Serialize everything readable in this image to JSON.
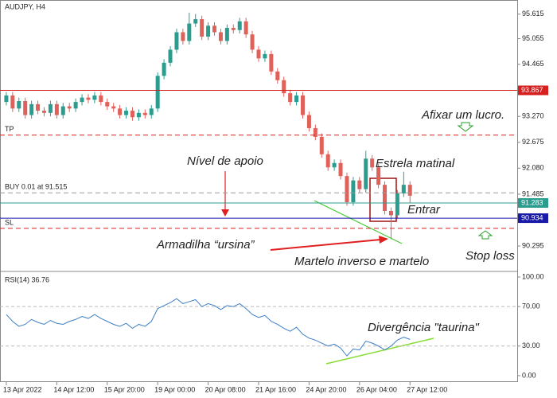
{
  "chart_data": [
    {
      "type": "candlestick",
      "title": "AUDJPY, H4",
      "open": [
        93.6,
        93.75,
        93.45,
        93.62,
        93.3,
        93.55,
        93.4,
        93.35,
        93.55,
        93.3,
        93.5,
        93.45,
        93.6,
        93.7,
        93.65,
        93.75,
        93.6,
        93.5,
        93.45,
        93.3,
        93.4,
        93.25,
        93.35,
        93.3,
        93.45,
        94.2,
        94.5,
        94.8,
        95.2,
        95.0,
        95.4,
        95.5,
        95.1,
        95.35,
        95.2,
        95.0,
        95.3,
        95.25,
        95.45,
        95.15,
        94.8,
        94.6,
        94.7,
        94.3,
        94.1,
        93.8,
        93.6,
        93.75,
        93.3,
        93.0,
        92.8,
        92.4,
        92.1,
        92.2,
        91.9,
        91.3,
        91.8,
        91.6,
        92.3,
        92.1,
        91.7,
        91.1,
        91.0,
        91.5,
        91.7
      ],
      "high": [
        93.83,
        93.83,
        93.7,
        93.7,
        93.63,
        93.63,
        93.48,
        93.63,
        93.63,
        93.58,
        93.58,
        93.68,
        93.78,
        93.78,
        93.83,
        93.83,
        93.68,
        93.58,
        93.53,
        93.48,
        93.48,
        93.43,
        93.43,
        93.53,
        94.28,
        94.58,
        94.88,
        95.28,
        95.28,
        95.65,
        95.62,
        95.58,
        95.43,
        95.43,
        95.28,
        95.38,
        95.38,
        95.53,
        95.53,
        95.23,
        94.88,
        94.78,
        94.78,
        94.38,
        94.18,
        93.88,
        93.83,
        93.83,
        93.38,
        93.08,
        92.88,
        92.48,
        92.28,
        92.28,
        91.98,
        91.88,
        91.88,
        92.48,
        92.38,
        92.18,
        91.78,
        91.18,
        91.58,
        92.0,
        91.78
      ],
      "low": [
        93.52,
        93.37,
        93.37,
        93.22,
        93.22,
        93.32,
        93.27,
        93.27,
        93.22,
        93.22,
        93.37,
        93.37,
        93.52,
        93.57,
        93.57,
        93.52,
        93.42,
        93.37,
        93.22,
        93.22,
        93.17,
        93.17,
        93.22,
        93.22,
        93.37,
        94.12,
        94.42,
        94.72,
        94.92,
        94.92,
        95.32,
        95.02,
        95.02,
        95.12,
        94.92,
        94.92,
        95.17,
        95.17,
        95.07,
        94.72,
        94.52,
        94.52,
        94.22,
        94.02,
        93.72,
        93.52,
        93.52,
        93.22,
        92.92,
        92.72,
        92.32,
        92.02,
        92.02,
        91.82,
        91.22,
        91.22,
        91.52,
        91.52,
        92.02,
        91.62,
        91.02,
        90.45,
        90.92,
        91.42,
        91.28
      ],
      "close": [
        93.75,
        93.45,
        93.62,
        93.3,
        93.55,
        93.4,
        93.35,
        93.55,
        93.3,
        93.5,
        93.45,
        93.6,
        93.7,
        93.65,
        93.75,
        93.6,
        93.5,
        93.45,
        93.3,
        93.4,
        93.25,
        93.35,
        93.3,
        93.45,
        94.2,
        94.5,
        94.8,
        95.2,
        95.0,
        95.4,
        95.5,
        95.1,
        95.35,
        95.2,
        95.0,
        95.3,
        95.25,
        95.45,
        95.15,
        94.8,
        94.6,
        94.7,
        94.3,
        94.1,
        93.8,
        93.6,
        93.75,
        93.3,
        93.0,
        92.8,
        92.4,
        92.1,
        92.2,
        91.9,
        91.3,
        91.8,
        91.6,
        92.3,
        92.1,
        91.7,
        91.1,
        91.0,
        91.5,
        91.7,
        91.45
      ],
      "up_color": "#2a9d8f",
      "down_color": "#e0605a",
      "ylim": [
        89.73,
        95.94
      ],
      "yticks": [
        {
          "value": 95.615,
          "label": "95.615"
        },
        {
          "value": 95.055,
          "label": "95.055"
        },
        {
          "value": 94.465,
          "label": "94.465"
        },
        {
          "value": 93.27,
          "label": "93.270"
        },
        {
          "value": 92.675,
          "label": "92.675"
        },
        {
          "value": 92.08,
          "label": "92.080"
        },
        {
          "value": 91.485,
          "label": "91.485"
        },
        {
          "value": 90.295,
          "label": "90.295"
        }
      ],
      "xlim": [
        -1,
        81
      ],
      "xticks": [
        {
          "value": 0,
          "label": "13 Apr 2022"
        },
        {
          "value": 8,
          "label": "14 Apr 12:00"
        },
        {
          "value": 16,
          "label": "15 Apr 20:00"
        },
        {
          "value": 24,
          "label": "19 Apr 00:00"
        },
        {
          "value": 32,
          "label": "20 Apr 08:00"
        },
        {
          "value": 40,
          "label": "21 Apr 16:00"
        },
        {
          "value": 48,
          "label": "24 Apr 20:00"
        },
        {
          "value": 56,
          "label": "26 Apr 04:00"
        },
        {
          "value": 64,
          "label": "27 Apr 12:00"
        }
      ],
      "levels": [
        {
          "value": 93.867,
          "label": "93.867",
          "color": "#d62020",
          "style": "solid",
          "tag": "axis"
        },
        {
          "value": 92.84,
          "label": "TP",
          "color": "#d62020",
          "style": "dash",
          "tag": "left"
        },
        {
          "value": 91.515,
          "label": "BUY 0.01 at 91.515",
          "color": "#999999",
          "style": "dash",
          "tag": "left"
        },
        {
          "value": 91.283,
          "label": "91.283",
          "color": "#2a9d8f",
          "style": "solid",
          "tag": "axis"
        },
        {
          "value": 90.934,
          "label": "90.934",
          "color": "#1a1aa8",
          "style": "solid",
          "tag": "axis"
        },
        {
          "value": 90.7,
          "label": "SL",
          "color": "#d62020",
          "style": "dash",
          "tag": "left"
        }
      ],
      "annotations": [
        "Afixar um lucro.",
        "Nível de apoio",
        "Estrela matinal",
        "Entrar",
        "Armadilha “ursina”",
        "Martelo inverso e martelo",
        "Stop loss",
        "Divergência \"taurina\""
      ]
    },
    {
      "type": "line",
      "title": "RSI(14) 36.76",
      "color": "#3d7fc4",
      "values": [
        62,
        55,
        50,
        52,
        57,
        54,
        52,
        56,
        53,
        52,
        55,
        57,
        60,
        58,
        62,
        58,
        55,
        52,
        50,
        53,
        48,
        52,
        50,
        55,
        68,
        71,
        74,
        78,
        73,
        75,
        77,
        70,
        73,
        71,
        67,
        71,
        70,
        73,
        68,
        62,
        59,
        61,
        55,
        52,
        48,
        45,
        49,
        42,
        38,
        36,
        33,
        30,
        32,
        28,
        20,
        27,
        26,
        35,
        33,
        30,
        26,
        30,
        36,
        39,
        36.76
      ],
      "ylim": [
        -6.5,
        104
      ],
      "yticks": [
        {
          "value": 100,
          "label": "100.00"
        },
        {
          "value": 70,
          "label": "70.00"
        },
        {
          "value": 30,
          "label": "30.00"
        },
        {
          "value": 0,
          "label": "0.00"
        }
      ],
      "grid_values": [
        70,
        30
      ]
    }
  ]
}
